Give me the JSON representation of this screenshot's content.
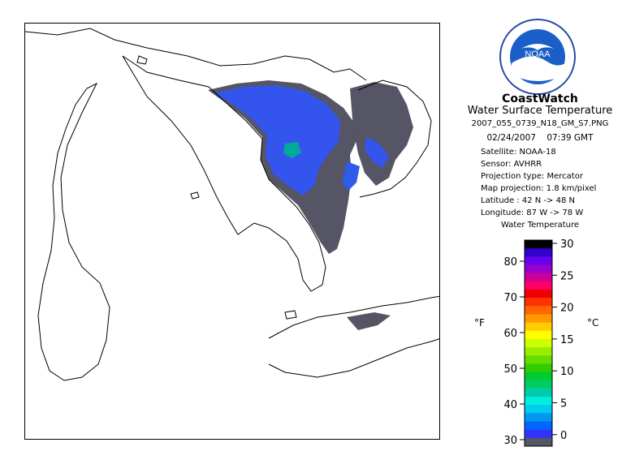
{
  "logo": {
    "text": "NOAA"
  },
  "header": {
    "title": "CoastWatch",
    "subtitle": "Water Surface Temperature",
    "filename": "2007_055_0739_N18_GM_S7.PNG",
    "date": "02/24/2007",
    "time": "07:39 GMT"
  },
  "metadata": [
    "Satellite: NOAA-18",
    "Sensor: AVHRR",
    "Projection type:  Mercator",
    "Map projection: 1.8 km/pixel",
    "Latitude : 42 N -> 48 N",
    "Longitude: 87 W -> 78 W"
  ],
  "legend": {
    "title": "Water Temperature",
    "fahrenheit_label": "°F",
    "celsius_label": "°C",
    "fahrenheit_ticks": [
      "80",
      "70",
      "60",
      "50",
      "40",
      "30"
    ],
    "celsius_ticks": [
      "30",
      "25",
      "20",
      "15",
      "10",
      "5",
      "0"
    ],
    "colors": [
      "#000000",
      "#3300cc",
      "#6600ee",
      "#9900cc",
      "#cc0099",
      "#ff0066",
      "#ee0000",
      "#ff3300",
      "#ff6600",
      "#ff9900",
      "#ffcc00",
      "#ffff00",
      "#ccff00",
      "#99ee00",
      "#66dd00",
      "#33cc00",
      "#00cc33",
      "#00cc66",
      "#00ccaa",
      "#00eedd",
      "#00ccee",
      "#0099ee",
      "#0066ff",
      "#3333ff",
      "#555566"
    ]
  },
  "map": {
    "ice_color": "#555566",
    "water_colors": [
      "#3355ee",
      "#2277ee",
      "#00aa99"
    ]
  }
}
